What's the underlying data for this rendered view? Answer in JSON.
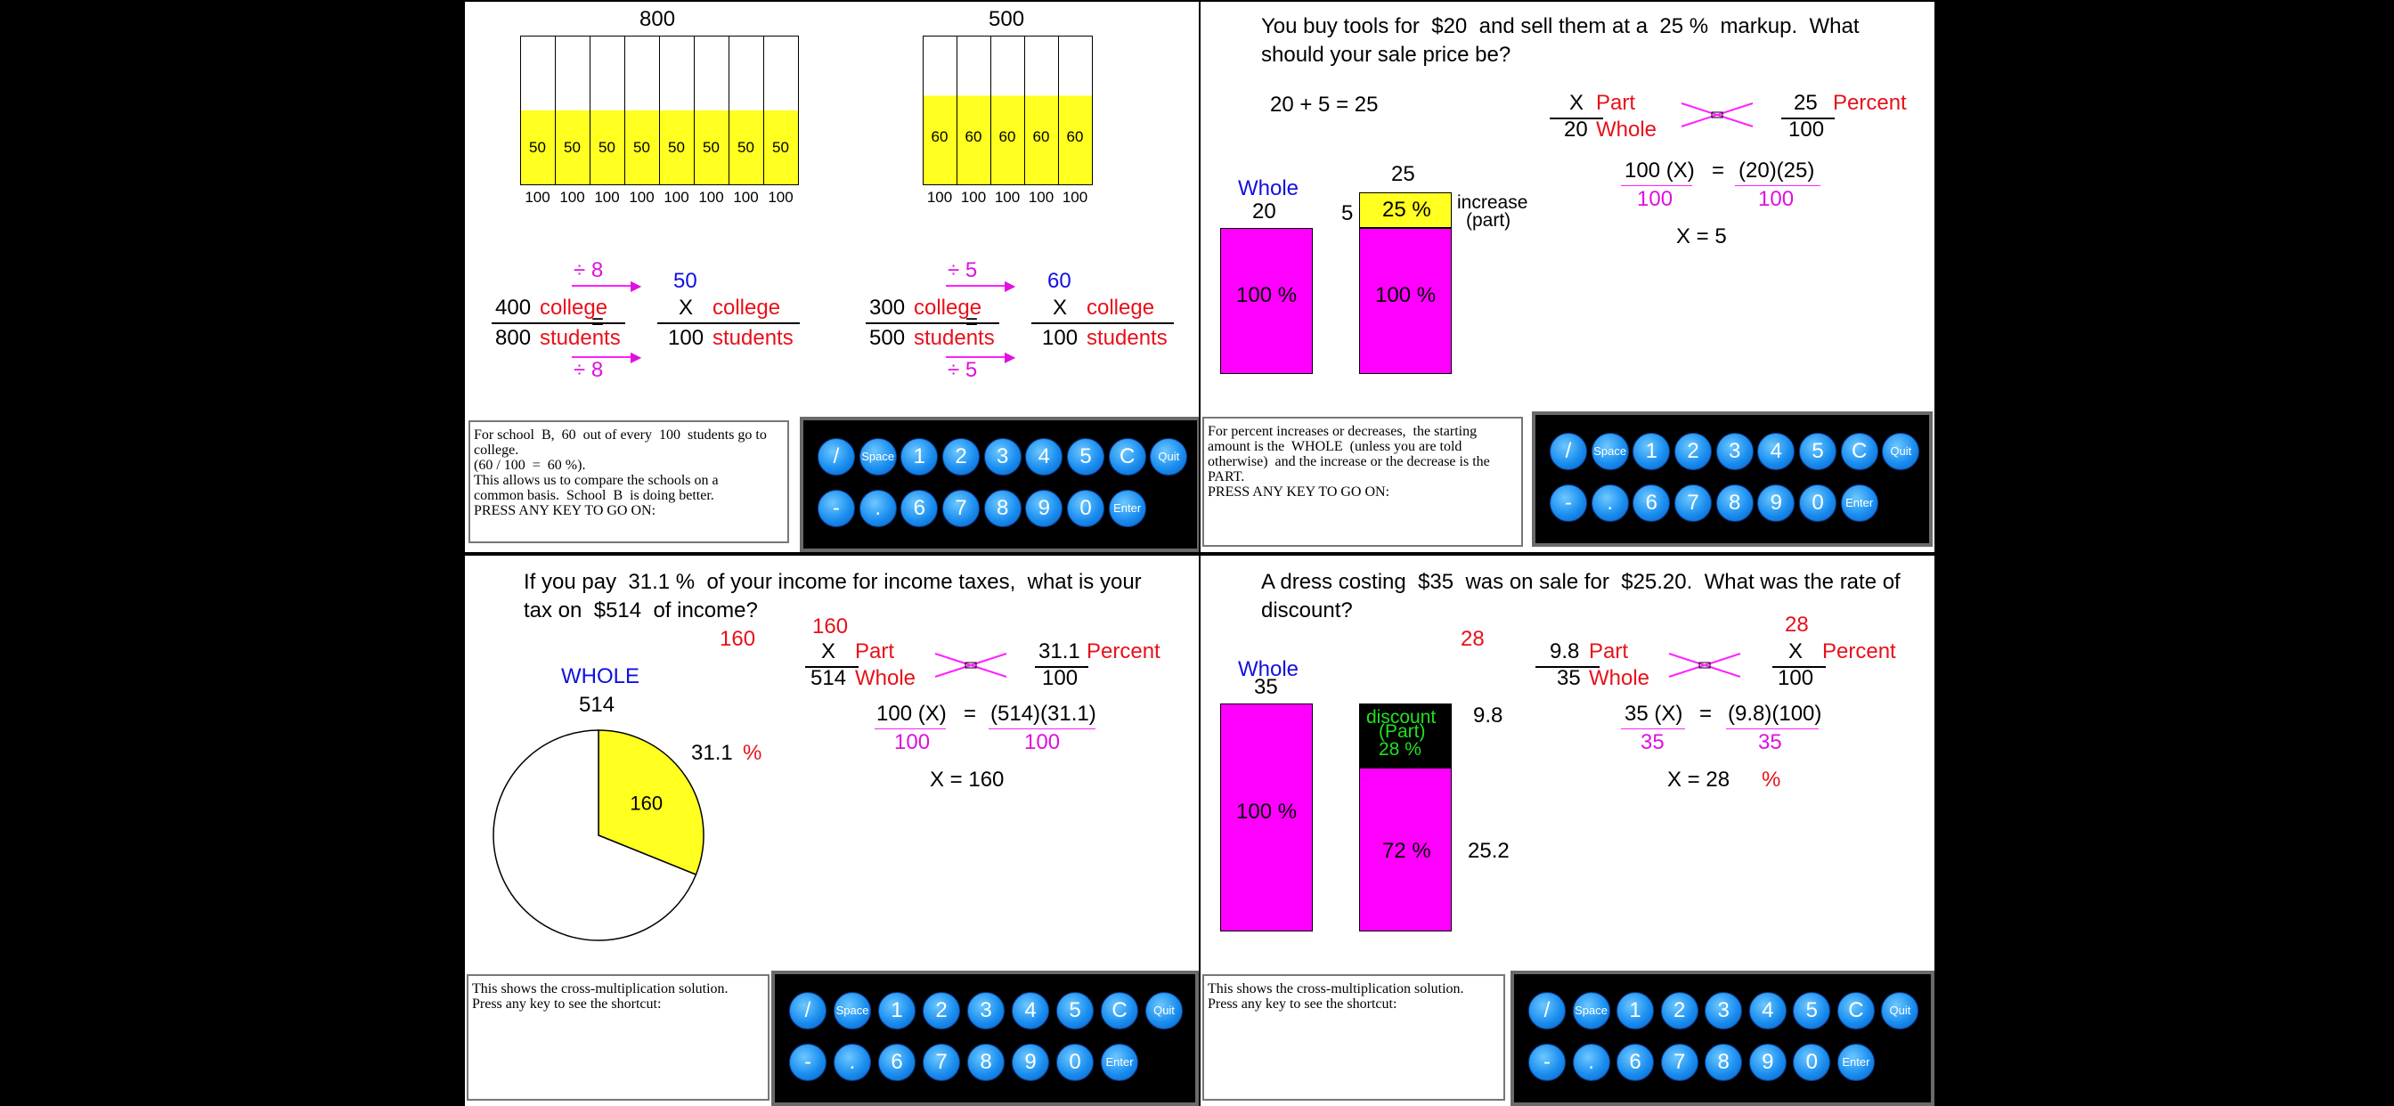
{
  "keypad": {
    "row1": [
      "/",
      "Space",
      "1",
      "2",
      "3",
      "4",
      "5",
      "C",
      "Quit"
    ],
    "row2": [
      "-",
      ".",
      "6",
      "7",
      "8",
      "9",
      "0",
      "Enter"
    ]
  },
  "panel1": {
    "bar_a": {
      "total": "800",
      "cells": [
        "50",
        "50",
        "50",
        "50",
        "50",
        "50",
        "50",
        "50"
      ],
      "bottom": [
        "100",
        "100",
        "100",
        "100",
        "100",
        "100",
        "100",
        "100"
      ]
    },
    "bar_b": {
      "total": "500",
      "cells": [
        "60",
        "60",
        "60",
        "60",
        "60"
      ],
      "bottom": [
        "100",
        "100",
        "100",
        "100",
        "100"
      ]
    },
    "prop_a": {
      "div_top": "÷ 8",
      "div_bottom": "÷ 8",
      "num": "400",
      "num_label": "college",
      "den": "800",
      "den_label": "students",
      "answer": "50",
      "x": "X",
      "x_label": "college",
      "den2": "100",
      "den2_label": "students"
    },
    "prop_b": {
      "div_top": "÷ 5",
      "div_bottom": "÷ 5",
      "num": "300",
      "num_label": "college",
      "den": "500",
      "den_label": "students",
      "answer": "60",
      "x": "X",
      "x_label": "college",
      "den2": "100",
      "den2_label": "students"
    },
    "equals": "=",
    "message": "For school  B,  60  out of every  100  students go to\ncollege.\n(60 / 100  =  60 %).\nThis allows us to compare the schools on a\ncommon basis.  School  B  is doing better.\nPRESS ANY KEY TO GO ON:"
  },
  "panel2": {
    "question": "You buy tools for  $20  and sell them at a  25 %  markup.  What\nshould your sale price be?",
    "sum": "20  +  5  =  25",
    "whole_label": "Whole",
    "whole_value": "20",
    "whole_pct": "100 %",
    "total_value": "25",
    "part_value": "5",
    "part_pct": "25 %",
    "base_pct": "100 %",
    "increase_label": "increase",
    "part_label": "(part)",
    "frac1": {
      "top": "X",
      "top_label": "Part",
      "bot": "20",
      "bot_label": "Whole"
    },
    "frac2": {
      "top": "25",
      "top_label": "Percent",
      "bot": "100"
    },
    "eq": {
      "left": "100 (X)",
      "left_den": "100",
      "eq": "=",
      "right": "(20)(25)",
      "right_den": "100"
    },
    "result": "X   =   5",
    "message": "For percent increases or decreases,  the starting\namount is the  WHOLE  (unless you are told\notherwise)  and the increase or the decrease is the\nPART.\nPRESS ANY KEY TO GO ON:"
  },
  "panel3": {
    "question": "If you pay  31.1 %  of your income for income taxes,  what is your\ntax on  $514  of income?",
    "whole_label": "WHOLE",
    "whole_value": "514",
    "slice_value": "160",
    "pct_value": "31.1",
    "pct_sign": "%",
    "side_160": "160",
    "frac1": {
      "above": "160",
      "top": "X",
      "top_label": "Part",
      "bot": "514",
      "bot_label": "Whole"
    },
    "frac2": {
      "top": "31.1",
      "top_label": "Percent",
      "bot": "100"
    },
    "eq": {
      "left": "100 (X)",
      "left_den": "100",
      "eq": "=",
      "right": "(514)(31.1)",
      "right_den": "100"
    },
    "result": "X   =   160",
    "message": "This shows the cross-multiplication solution.\nPress any key to see the shortcut:",
    "chart_data": {
      "type": "pie",
      "values": [
        31.1,
        68.9
      ],
      "labels": [
        "160",
        ""
      ]
    }
  },
  "panel4": {
    "question": "A dress costing  $35  was on sale for  $25.20.  What was the rate of\ndiscount?",
    "whole_label": "Whole",
    "whole_value": "35",
    "whole_pct": "100 %",
    "top_28": "28",
    "discount_lines": [
      "discount",
      "(Part)",
      "28 %"
    ],
    "remain_pct": "72 %",
    "side_98": "9.8",
    "side_252": "25.2",
    "frac1": {
      "top": "9.8",
      "top_label": "Part",
      "bot": "35",
      "bot_label": "Whole"
    },
    "frac2": {
      "above": "28",
      "top": "X",
      "top_label": "Percent",
      "bot": "100"
    },
    "eq": {
      "left": "35 (X)",
      "left_den": "35",
      "eq": "=",
      "right": "(9.8)(100)",
      "right_den": "35"
    },
    "result": "X   =   28",
    "result_pct": "%",
    "message": "This shows the cross-multiplication solution.\nPress any key to see the shortcut:"
  }
}
